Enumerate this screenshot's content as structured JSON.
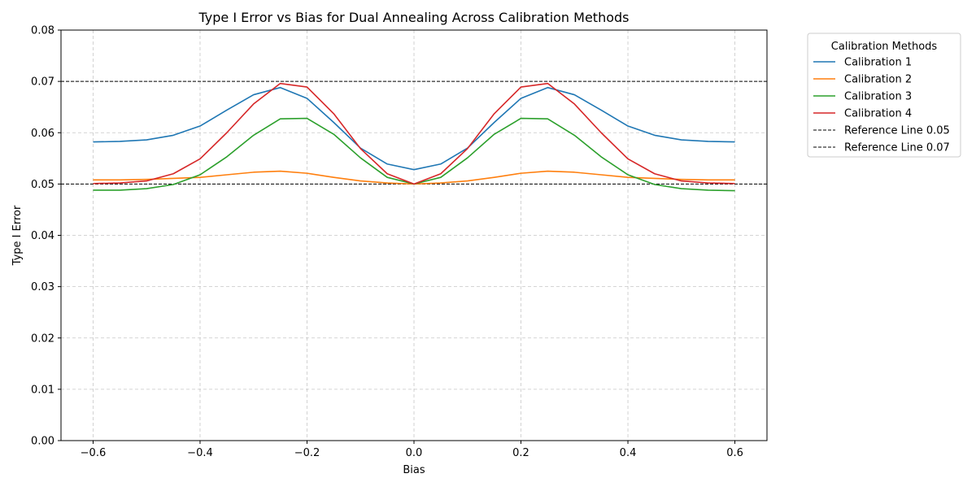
{
  "chart_data": {
    "type": "line",
    "title": "Type I Error vs Bias for Dual Annealing Across Calibration Methods",
    "xlabel": "Bias",
    "ylabel": "Type I Error",
    "xlim": [
      -0.66,
      0.66
    ],
    "ylim": [
      0,
      0.08
    ],
    "x_ticks": [
      -0.6,
      -0.4,
      -0.2,
      0.0,
      0.2,
      0.4,
      0.6
    ],
    "x_tick_labels": [
      "−0.6",
      "−0.4",
      "−0.2",
      "0.0",
      "0.2",
      "0.4",
      "0.6"
    ],
    "y_ticks": [
      0,
      0.01,
      0.02,
      0.03,
      0.04,
      0.05,
      0.06,
      0.07,
      0.08
    ],
    "y_tick_labels": [
      "0.00",
      "0.01",
      "0.02",
      "0.03",
      "0.04",
      "0.05",
      "0.06",
      "0.07",
      "0.08"
    ],
    "grid": true,
    "legend": {
      "title": "Calibration Methods",
      "placement": "outside-top-right"
    },
    "x": [
      -0.6,
      -0.55,
      -0.5,
      -0.45,
      -0.4,
      -0.35,
      -0.3,
      -0.25,
      -0.2,
      -0.15,
      -0.1,
      -0.05,
      0.0,
      0.05,
      0.1,
      0.15,
      0.2,
      0.25,
      0.3,
      0.35,
      0.4,
      0.45,
      0.5,
      0.55,
      0.6
    ],
    "series": [
      {
        "name": "Calibration 1",
        "color": "#1f77b4",
        "values": [
          0.0582,
          0.0583,
          0.0586,
          0.0595,
          0.0613,
          0.0644,
          0.0674,
          0.0688,
          0.0667,
          0.062,
          0.057,
          0.0539,
          0.0528,
          0.0539,
          0.057,
          0.062,
          0.0667,
          0.0688,
          0.0674,
          0.0644,
          0.0613,
          0.0595,
          0.0586,
          0.0583,
          0.0582
        ]
      },
      {
        "name": "Calibration 2",
        "color": "#ff7f0e",
        "values": [
          0.0508,
          0.0508,
          0.0509,
          0.0511,
          0.0513,
          0.0518,
          0.0523,
          0.0525,
          0.0521,
          0.0513,
          0.0506,
          0.0502,
          0.05,
          0.0502,
          0.0506,
          0.0513,
          0.0521,
          0.0525,
          0.0523,
          0.0518,
          0.0513,
          0.0511,
          0.0509,
          0.0508,
          0.0508
        ]
      },
      {
        "name": "Calibration 3",
        "color": "#2ca02c",
        "values": [
          0.0488,
          0.0488,
          0.0491,
          0.0499,
          0.0518,
          0.0553,
          0.0595,
          0.0627,
          0.0628,
          0.0597,
          0.0551,
          0.0513,
          0.05,
          0.0513,
          0.0551,
          0.0597,
          0.0628,
          0.0627,
          0.0595,
          0.0553,
          0.0518,
          0.0499,
          0.0491,
          0.0488,
          0.0487
        ]
      },
      {
        "name": "Calibration 4",
        "color": "#d62728",
        "values": [
          0.0501,
          0.0502,
          0.0506,
          0.052,
          0.0549,
          0.06,
          0.0656,
          0.0696,
          0.0689,
          0.0637,
          0.0569,
          0.052,
          0.05,
          0.052,
          0.0569,
          0.0637,
          0.0689,
          0.0696,
          0.0656,
          0.06,
          0.0549,
          0.052,
          0.0506,
          0.0502,
          0.0501
        ]
      }
    ],
    "reference_lines": [
      {
        "name": "Reference Line 0.05",
        "y": 0.05,
        "color": "#000000",
        "style": "dashed"
      },
      {
        "name": "Reference Line 0.07",
        "y": 0.07,
        "color": "#000000",
        "style": "dashed"
      }
    ]
  }
}
